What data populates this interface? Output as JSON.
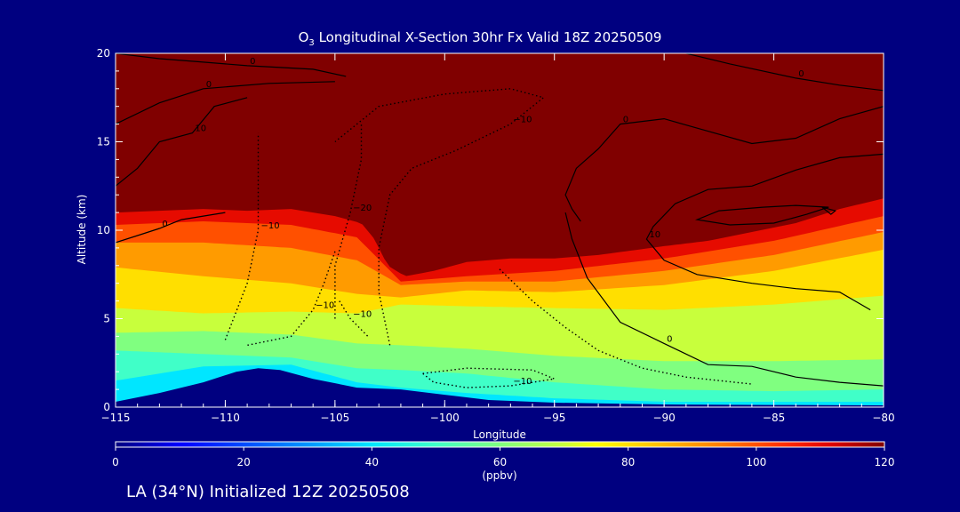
{
  "chart_data": {
    "type": "heatmap",
    "title_prefix": "O",
    "title_sub": "3",
    "title_rest": " Longitudinal X-Section 30hr  Fx Valid 18Z 20250509",
    "xlabel": "Longitude",
    "ylabel": "Altitude (km)",
    "xlim": [
      -115,
      -80
    ],
    "ylim": [
      0,
      20
    ],
    "xticks": [
      -115,
      -110,
      -105,
      -100,
      -95,
      -90,
      -85,
      -80
    ],
    "xtick_labels": [
      "−115",
      "−110",
      "−105",
      "−100",
      "−95",
      "−90",
      "−85",
      "−80"
    ],
    "yticks": [
      0,
      5,
      10,
      15,
      20
    ],
    "ytick_labels": [
      "0",
      "5",
      "10",
      "15",
      "20"
    ],
    "colorbar": {
      "range": [
        0,
        120
      ],
      "ticks": [
        0,
        20,
        40,
        60,
        80,
        100,
        120
      ],
      "tick_labels": [
        "0",
        "20",
        "40",
        "60",
        "80",
        "100",
        "120"
      ],
      "unit": "(ppbv)",
      "colors": [
        "#000080",
        "#0000ff",
        "#00c0ff",
        "#00ffff",
        "#40ffc0",
        "#80ff80",
        "#c0ff40",
        "#ffff00",
        "#ffc000",
        "#ff8000",
        "#ff4000",
        "#e00000",
        "#800000"
      ]
    },
    "terrain_top_km": [
      [
        -115,
        0.3
      ],
      [
        -113,
        0.8
      ],
      [
        -111,
        1.4
      ],
      [
        -109.5,
        2.0
      ],
      [
        -108.5,
        2.2
      ],
      [
        -107.5,
        2.1
      ],
      [
        -106,
        1.6
      ],
      [
        -104,
        1.1
      ],
      [
        -102,
        1.0
      ],
      [
        -100,
        0.7
      ],
      [
        -98,
        0.4
      ],
      [
        -95,
        0.25
      ],
      [
        -90,
        0.15
      ],
      [
        -85,
        0.12
      ],
      [
        -80,
        0.1
      ]
    ],
    "tropopause_120ppbv_km": [
      [
        -115,
        11.0
      ],
      [
        -113,
        11.1
      ],
      [
        -111,
        11.2
      ],
      [
        -109,
        11.1
      ],
      [
        -107,
        11.2
      ],
      [
        -105,
        10.8
      ],
      [
        -103.8,
        10.4
      ],
      [
        -103.2,
        9.5
      ],
      [
        -102.6,
        8.0
      ],
      [
        -101.8,
        7.4
      ],
      [
        -100.5,
        7.7
      ],
      [
        -99,
        8.2
      ],
      [
        -97,
        8.4
      ],
      [
        -95,
        8.4
      ],
      [
        -93,
        8.6
      ],
      [
        -90,
        9.1
      ],
      [
        -88,
        9.4
      ],
      [
        -86,
        9.9
      ],
      [
        -84,
        10.4
      ],
      [
        -82,
        11.2
      ],
      [
        -80,
        11.8
      ]
    ],
    "ozone_bands_km": [
      {
        "ppbv": 100,
        "levels": [
          [
            -115,
            10.3
          ],
          [
            -111,
            10.5
          ],
          [
            -107,
            10.3
          ],
          [
            -104,
            9.6
          ],
          [
            -102,
            7.1
          ],
          [
            -99,
            7.4
          ],
          [
            -95,
            7.7
          ],
          [
            -90,
            8.4
          ],
          [
            -85,
            9.4
          ],
          [
            -80,
            10.8
          ]
        ]
      },
      {
        "ppbv": 90,
        "levels": [
          [
            -115,
            9.3
          ],
          [
            -111,
            9.3
          ],
          [
            -107,
            9.0
          ],
          [
            -104,
            8.3
          ],
          [
            -102,
            6.9
          ],
          [
            -99,
            7.1
          ],
          [
            -95,
            7.1
          ],
          [
            -90,
            7.7
          ],
          [
            -85,
            8.6
          ],
          [
            -80,
            9.9
          ]
        ]
      },
      {
        "ppbv": 80,
        "levels": [
          [
            -115,
            7.9
          ],
          [
            -111,
            7.4
          ],
          [
            -107,
            7.0
          ],
          [
            -104,
            6.4
          ],
          [
            -102,
            6.2
          ],
          [
            -99,
            6.6
          ],
          [
            -95,
            6.5
          ],
          [
            -90,
            6.9
          ],
          [
            -85,
            7.7
          ],
          [
            -80,
            8.9
          ]
        ]
      },
      {
        "ppbv": 70,
        "levels": [
          [
            -115,
            5.6
          ],
          [
            -111,
            5.3
          ],
          [
            -107,
            5.4
          ],
          [
            -104,
            5.3
          ],
          [
            -102,
            5.8
          ],
          [
            -99,
            5.7
          ],
          [
            -95,
            5.6
          ],
          [
            -90,
            5.5
          ],
          [
            -85,
            5.8
          ],
          [
            -80,
            6.3
          ]
        ]
      },
      {
        "ppbv": 60,
        "levels": [
          [
            -115,
            4.2
          ],
          [
            -111,
            4.3
          ],
          [
            -107,
            4.1
          ],
          [
            -104,
            3.6
          ],
          [
            -102,
            3.5
          ],
          [
            -99,
            3.3
          ],
          [
            -95,
            2.9
          ],
          [
            -90,
            2.6
          ],
          [
            -85,
            2.6
          ],
          [
            -80,
            2.7
          ]
        ]
      },
      {
        "ppbv": 50,
        "levels": [
          [
            -115,
            3.2
          ],
          [
            -111,
            3.0
          ],
          [
            -107,
            2.8
          ],
          [
            -104,
            2.2
          ],
          [
            -102,
            2.1
          ],
          [
            -99,
            1.9
          ],
          [
            -95,
            1.4
          ],
          [
            -90,
            1.0
          ],
          [
            -85,
            0.9
          ],
          [
            -80,
            1.0
          ]
        ]
      },
      {
        "ppbv": 40,
        "levels": [
          [
            -115,
            1.5
          ],
          [
            -111,
            2.3
          ],
          [
            -107,
            2.4
          ],
          [
            -104,
            1.4
          ],
          [
            -102,
            1.1
          ],
          [
            -99,
            0.8
          ],
          [
            -95,
            0.5
          ],
          [
            -90,
            0.3
          ],
          [
            -85,
            0.3
          ],
          [
            -80,
            0.3
          ]
        ]
      }
    ],
    "contours": [
      {
        "label": "0",
        "dashed": false,
        "points": [
          [
            -115,
            20
          ],
          [
            -113,
            19.7
          ],
          [
            -111,
            19.5
          ],
          [
            -109,
            19.3
          ],
          [
            -106,
            19.1
          ],
          [
            -104.5,
            18.7
          ]
        ]
      },
      {
        "label": "0",
        "dashed": false,
        "points": [
          [
            -115,
            16.0
          ],
          [
            -113,
            17.2
          ],
          [
            -111,
            18.0
          ],
          [
            -108,
            18.3
          ],
          [
            -105,
            18.4
          ]
        ]
      },
      {
        "label": "10",
        "dashed": false,
        "points": [
          [
            -115,
            12.5
          ],
          [
            -114,
            13.5
          ],
          [
            -113,
            15.0
          ],
          [
            -111.5,
            15.5
          ],
          [
            -110.5,
            17.0
          ],
          [
            -109,
            17.5
          ]
        ]
      },
      {
        "label": "0",
        "dashed": false,
        "points": [
          [
            -115,
            9.3
          ],
          [
            -114,
            9.7
          ],
          [
            -113,
            10.1
          ],
          [
            -112,
            10.6
          ],
          [
            -110,
            11.0
          ]
        ]
      },
      {
        "label": "0",
        "dashed": false,
        "points": [
          [
            -80,
            17.9
          ],
          [
            -82,
            18.2
          ],
          [
            -84,
            18.6
          ],
          [
            -87,
            19.4
          ],
          [
            -89,
            20.0
          ]
        ]
      },
      {
        "label": "0",
        "dashed": false,
        "points": [
          [
            -80,
            17.0
          ],
          [
            -82,
            16.3
          ],
          [
            -84,
            15.2
          ],
          [
            -86,
            14.9
          ],
          [
            -88,
            15.6
          ],
          [
            -90,
            16.3
          ],
          [
            -92,
            16.0
          ],
          [
            -93,
            14.6
          ],
          [
            -94,
            13.5
          ],
          [
            -94.5,
            12.0
          ],
          [
            -94.2,
            11.2
          ],
          [
            -93.8,
            10.5
          ]
        ]
      },
      {
        "label": "10",
        "dashed": false,
        "points": [
          [
            -80,
            14.3
          ],
          [
            -82,
            14.1
          ],
          [
            -84,
            13.4
          ],
          [
            -86,
            12.5
          ],
          [
            -88,
            12.3
          ],
          [
            -89.5,
            11.5
          ],
          [
            -90.5,
            10.2
          ],
          [
            -90.8,
            9.5
          ],
          [
            -90,
            8.3
          ],
          [
            -88.5,
            7.5
          ],
          [
            -86,
            7.0
          ],
          [
            -84,
            6.7
          ],
          [
            -82,
            6.5
          ],
          [
            -80.6,
            5.5
          ]
        ]
      },
      {
        "label": "",
        "dashed": false,
        "points": [
          [
            -82.5,
            11.3
          ],
          [
            -84,
            11.4
          ],
          [
            -85.5,
            11.3
          ],
          [
            -87.5,
            11.1
          ],
          [
            -88.5,
            10.6
          ],
          [
            -87,
            10.3
          ],
          [
            -85,
            10.4
          ],
          [
            -83.5,
            10.9
          ],
          [
            -82.5,
            11.3
          ]
        ]
      },
      {
        "label": "",
        "dashed": false,
        "points": [
          [
            -82.8,
            11.3
          ],
          [
            -82.2,
            11.1
          ],
          [
            -82.4,
            10.9
          ],
          [
            -82.8,
            11.3
          ]
        ]
      },
      {
        "label": "0",
        "dashed": false,
        "points": [
          [
            -80,
            1.2
          ],
          [
            -82,
            1.4
          ],
          [
            -84,
            1.7
          ],
          [
            -86,
            2.3
          ],
          [
            -88,
            2.4
          ],
          [
            -90,
            3.6
          ],
          [
            -92,
            4.8
          ],
          [
            -93.5,
            7.3
          ],
          [
            -94.2,
            9.5
          ],
          [
            -94.5,
            11.0
          ]
        ]
      },
      {
        "label": "-10",
        "dashed": true,
        "points": [
          [
            -110,
            3.8
          ],
          [
            -109,
            7.0
          ],
          [
            -108.5,
            10.0
          ],
          [
            -108.5,
            13.0
          ],
          [
            -108.5,
            15.5
          ]
        ]
      },
      {
        "label": "-20",
        "dashed": true,
        "points": [
          [
            -105,
            5.0
          ],
          [
            -105,
            8.0
          ],
          [
            -104.3,
            11.0
          ],
          [
            -103.8,
            14.0
          ],
          [
            -103.8,
            16.0
          ]
        ]
      },
      {
        "label": "-10",
        "dashed": true,
        "points": [
          [
            -102.5,
            3.5
          ],
          [
            -103,
            6.5
          ],
          [
            -103,
            9.0
          ],
          [
            -102.5,
            12.0
          ],
          [
            -101.5,
            13.5
          ],
          [
            -99.5,
            14.5
          ],
          [
            -97,
            16.0
          ],
          [
            -95.5,
            17.5
          ],
          [
            -97,
            18.0
          ],
          [
            -100,
            17.7
          ],
          [
            -103,
            17.0
          ],
          [
            -105,
            15.0
          ]
        ]
      },
      {
        "label": "-10",
        "dashed": true,
        "points": [
          [
            -105,
            8.8
          ],
          [
            -105.5,
            7.0
          ],
          [
            -106,
            5.5
          ],
          [
            -107,
            4.0
          ],
          [
            -109,
            3.5
          ]
        ]
      },
      {
        "label": "-10",
        "dashed": true,
        "points": [
          [
            -101,
            1.9
          ],
          [
            -99,
            2.2
          ],
          [
            -96,
            2.1
          ],
          [
            -95,
            1.6
          ],
          [
            -97,
            1.2
          ],
          [
            -99,
            1.1
          ],
          [
            -100.5,
            1.4
          ],
          [
            -101,
            1.9
          ]
        ]
      },
      {
        "label": "",
        "dashed": true,
        "points": [
          [
            -97.5,
            7.8
          ],
          [
            -96,
            6.0
          ],
          [
            -94.5,
            4.5
          ],
          [
            -93,
            3.2
          ],
          [
            -91,
            2.2
          ],
          [
            -89,
            1.7
          ],
          [
            -86,
            1.3
          ]
        ]
      },
      {
        "label": "-10",
        "dashed": true,
        "points": [
          [
            -104.8,
            6.0
          ],
          [
            -104.3,
            5.0
          ],
          [
            -103.5,
            4.0
          ]
        ]
      }
    ]
  },
  "title": {
    "prefix": "O",
    "sub": "3",
    "rest": " Longitudinal X-Section 30hr  Fx Valid 18Z 20250509"
  },
  "footer": "LA (34°N) Initialized 12Z 20250508",
  "colors": {
    "background": "#000080",
    "text": "#ffffff",
    "contour": "#000000"
  }
}
